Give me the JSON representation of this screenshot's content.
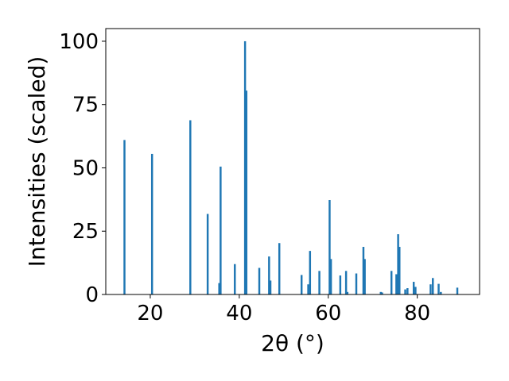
{
  "chart_data": {
    "type": "bar",
    "xlabel": "2θ (°)",
    "ylabel": "Intensities (scaled)",
    "xlim": [
      10,
      94
    ],
    "ylim": [
      0,
      105
    ],
    "xticks": [
      20,
      40,
      60,
      80
    ],
    "yticks": [
      0,
      25,
      50,
      75,
      100
    ],
    "grid": false,
    "legend": "none",
    "bar_color": "#1f77b4",
    "series": [
      {
        "x": [
          14.2,
          20.4,
          29.0,
          32.9,
          35.5,
          35.8,
          39.0,
          41.3,
          41.6,
          44.5,
          46.7,
          47.0,
          49.0,
          54.0,
          55.5,
          55.9,
          58.0,
          60.3,
          60.6,
          62.7,
          64.0,
          64.3,
          66.3,
          67.9,
          68.2,
          71.8,
          72.1,
          74.2,
          75.3,
          75.7,
          76.0,
          77.3,
          77.8,
          79.2,
          79.6,
          83.0,
          83.5,
          84.8,
          85.3,
          89.0
        ],
        "values": [
          61,
          55.5,
          68.8,
          31.8,
          4.5,
          50.5,
          12,
          100,
          80.5,
          10.5,
          15,
          5.5,
          20.3,
          7.7,
          4,
          17.2,
          9.3,
          37.3,
          14,
          7.5,
          9.3,
          1,
          8.3,
          18.8,
          14,
          1,
          0.8,
          9.3,
          8,
          23.8,
          18.8,
          2,
          2.5,
          5,
          3,
          4,
          6.5,
          4.2,
          1,
          2.7
        ]
      }
    ]
  }
}
